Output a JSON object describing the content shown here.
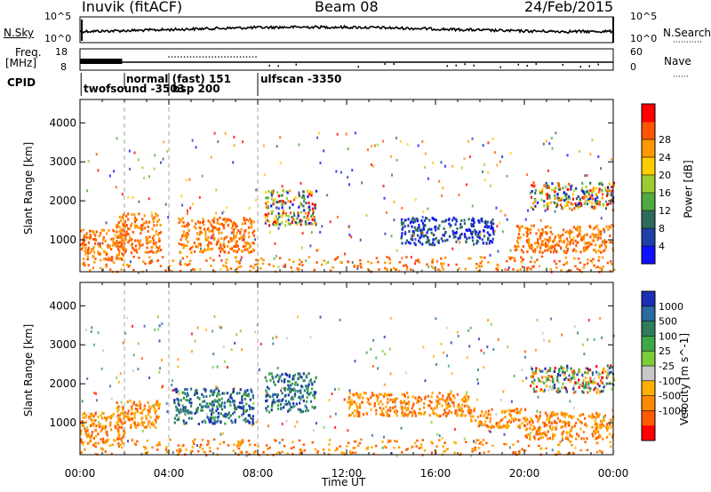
{
  "header": {
    "station": "Inuvik (fitACF)",
    "beam": "Beam 08",
    "date": "24/Feb/2015"
  },
  "side_labels": {
    "nsky": "N.Sky",
    "nsearch": "N.Search",
    "freq_line1": "Freq.",
    "freq_line2": "[MHz]",
    "nave": "Nave",
    "cpid": "CPID"
  },
  "small_axes": {
    "noise_left_ticks": [
      "10^5",
      "10^0"
    ],
    "noise_right_ticks": [
      "10^5",
      "10^0"
    ],
    "freq_left_ticks": [
      "18",
      "8"
    ],
    "freq_right_ticks": [
      "60",
      "0"
    ]
  },
  "cpid_labels": [
    {
      "text": "twofsound -3503",
      "hour": 0.1
    },
    {
      "text": "normal (fast) 151",
      "hour": 2.0
    },
    {
      "text": "bsp 200",
      "hour": 4.0
    },
    {
      "text": "ulfscan -3350",
      "hour": 8.0
    }
  ],
  "chart_data": [
    {
      "type": "heatmap",
      "panel": "power",
      "title": "Inuvik (fitACF) Beam 08 24/Feb/2015",
      "xlabel": "Time UT",
      "ylabel": "Slant Range [km]",
      "x_range_hours": [
        0,
        24
      ],
      "x_tick_labels": [
        "00:00",
        "04:00",
        "08:00",
        "12:00",
        "16:00",
        "20:00",
        "00:00"
      ],
      "y_range": [
        180,
        4600
      ],
      "y_ticks": [
        1000,
        2000,
        3000,
        4000
      ],
      "colorbar": {
        "label": "Power [dB]",
        "ticks": [
          "4",
          "8",
          "12",
          "16",
          "20",
          "24",
          "28"
        ],
        "colors": [
          "#1010ff",
          "#1f3fa8",
          "#2e6b5e",
          "#4faa3f",
          "#9acd32",
          "#ffcc00",
          "#ff9900",
          "#ff5500",
          "#ff0000"
        ]
      },
      "regions": [
        {
          "t0": 0.0,
          "t1": 2.0,
          "r0": 500,
          "r1": 1300,
          "level": "high"
        },
        {
          "t0": 1.6,
          "t1": 3.6,
          "r0": 700,
          "r1": 1700,
          "level": "high"
        },
        {
          "t0": 4.4,
          "t1": 7.8,
          "r0": 700,
          "r1": 1600,
          "level": "high"
        },
        {
          "t0": 8.3,
          "t1": 10.6,
          "r0": 1400,
          "r1": 2300,
          "level": "mixed"
        },
        {
          "t0": 14.4,
          "t1": 18.6,
          "r0": 900,
          "r1": 1600,
          "level": "low"
        },
        {
          "t0": 19.5,
          "t1": 24.0,
          "r0": 700,
          "r1": 1400,
          "level": "high"
        },
        {
          "t0": 20.2,
          "t1": 24.0,
          "r0": 1800,
          "r1": 2500,
          "level": "mixed"
        }
      ]
    },
    {
      "type": "heatmap",
      "panel": "velocity",
      "xlabel": "Time UT",
      "ylabel": "Slant Range [km]",
      "x_range_hours": [
        0,
        24
      ],
      "x_tick_labels": [
        "00:00",
        "04:00",
        "08:00",
        "12:00",
        "16:00",
        "20:00",
        "00:00"
      ],
      "y_range": [
        180,
        4600
      ],
      "y_ticks": [
        1000,
        2000,
        3000,
        4000
      ],
      "colorbar": {
        "label": "Velocity [m s^-1]",
        "ticks": [
          "1000",
          "500",
          "100",
          "25",
          "-25",
          "-100",
          "-500",
          "-1000"
        ],
        "colors": [
          "#1a2fb5",
          "#2a6aa0",
          "#2e7d5b",
          "#3fa84a",
          "#7ccd3a",
          "#c8c8c8",
          "#ffb000",
          "#ff8a00",
          "#ff5a00",
          "#ff0000"
        ]
      },
      "regions": [
        {
          "t0": 0.0,
          "t1": 2.0,
          "r0": 500,
          "r1": 1300,
          "level": "negative"
        },
        {
          "t0": 1.6,
          "t1": 3.6,
          "r0": 900,
          "r1": 1600,
          "level": "negative"
        },
        {
          "t0": 4.2,
          "t1": 7.8,
          "r0": 1000,
          "r1": 1900,
          "level": "positive"
        },
        {
          "t0": 8.3,
          "t1": 10.6,
          "r0": 1300,
          "r1": 2300,
          "level": "positive"
        },
        {
          "t0": 12.0,
          "t1": 17.5,
          "r0": 1200,
          "r1": 1800,
          "level": "negative"
        },
        {
          "t0": 17.5,
          "t1": 20.0,
          "r0": 900,
          "r1": 1400,
          "level": "negative"
        },
        {
          "t0": 20.0,
          "t1": 24.0,
          "r0": 600,
          "r1": 1300,
          "level": "negative"
        },
        {
          "t0": 20.2,
          "t1": 24.0,
          "r0": 1800,
          "r1": 2500,
          "level": "mixed"
        }
      ]
    }
  ]
}
